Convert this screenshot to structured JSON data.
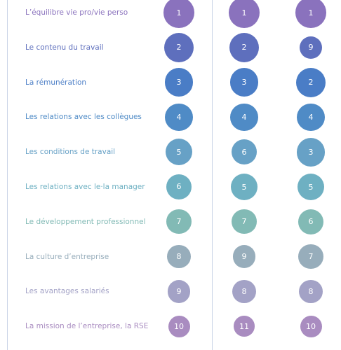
{
  "rows": [
    {
      "label": "L’équilibre vie pro/vie perso",
      "color": "#8a72bd",
      "ranks": [
        1,
        1,
        1
      ]
    },
    {
      "label": "Le contenu du travail",
      "color": "#5e6fbd",
      "ranks": [
        2,
        2,
        9
      ]
    },
    {
      "label": "La rémunération",
      "color": "#4a7dc6",
      "ranks": [
        3,
        3,
        2
      ]
    },
    {
      "label": "Les relations avec les collègues",
      "color": "#4f8bc6",
      "ranks": [
        4,
        4,
        4
      ]
    },
    {
      "label": "Les conditions de travail",
      "color": "#67a1c6",
      "ranks": [
        5,
        6,
        3
      ]
    },
    {
      "label": "Les relations avec le·la manager",
      "color": "#6eb0c2",
      "ranks": [
        6,
        5,
        5
      ]
    },
    {
      "label": "Le développement professionnel",
      "color": "#82bab5",
      "ranks": [
        7,
        7,
        6
      ]
    },
    {
      "label": "La culture d’entreprise",
      "color": "#97adbb",
      "ranks": [
        8,
        9,
        7
      ]
    },
    {
      "label": "Les avantages salariés",
      "color": "#a3a2c6",
      "ranks": [
        9,
        8,
        8
      ]
    },
    {
      "label": "La mission de l’entreprise, la RSE",
      "color": "#a98cc0",
      "ranks": [
        10,
        11,
        10
      ]
    }
  ]
}
